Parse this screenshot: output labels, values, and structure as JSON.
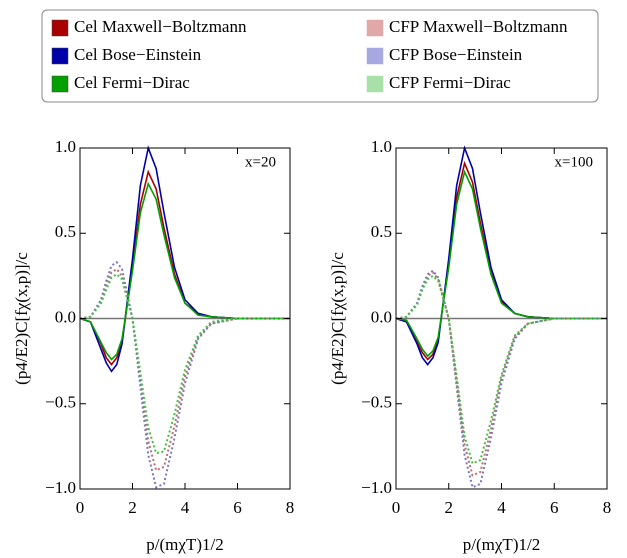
{
  "chart_data": [
    {
      "type": "line",
      "annotation": "x=20",
      "xlabel": "p/(mχT)1/2",
      "ylabel": "(p4/E2)C[fχ(x,p)]/c",
      "xlim": [
        0,
        8
      ],
      "ylim": [
        -1,
        1
      ],
      "xticks": [
        0,
        2,
        4,
        6,
        8
      ],
      "yticks": [
        {
          "value": -1,
          "label": "−1.0"
        },
        {
          "value": -0.5,
          "label": "−0.5"
        },
        {
          "value": 0,
          "label": "0.0"
        },
        {
          "value": 0.5,
          "label": "0.5"
        },
        {
          "value": 1,
          "label": "1.0"
        }
      ],
      "x": [
        0,
        0.4,
        0.8,
        1.0,
        1.2,
        1.4,
        1.6,
        2.0,
        2.3,
        2.6,
        2.9,
        3.2,
        3.6,
        4.0,
        4.5,
        5,
        6,
        7,
        8
      ],
      "series": [
        {
          "name": "Cel Maxwell−Boltzmann",
          "color": "#a80000",
          "dotted": false,
          "values": [
            0,
            -0.02,
            -0.15,
            -0.23,
            -0.27,
            -0.23,
            -0.14,
            0.3,
            0.67,
            0.86,
            0.76,
            0.53,
            0.26,
            0.09,
            0.03,
            0.01,
            0,
            0,
            0
          ]
        },
        {
          "name": "Cel Bose−Einstein",
          "color": "#0000a8",
          "dotted": false,
          "values": [
            0,
            -0.02,
            -0.18,
            -0.26,
            -0.31,
            -0.27,
            -0.15,
            0.35,
            0.78,
            1.0,
            0.88,
            0.62,
            0.3,
            0.11,
            0.03,
            0.01,
            0,
            0,
            0
          ]
        },
        {
          "name": "Cel Fermi−Dirac",
          "color": "#00a000",
          "dotted": false,
          "values": [
            0,
            -0.02,
            -0.14,
            -0.2,
            -0.24,
            -0.21,
            -0.12,
            0.28,
            0.62,
            0.79,
            0.7,
            0.49,
            0.24,
            0.09,
            0.02,
            0.01,
            0,
            0,
            0
          ]
        },
        {
          "name": "CFP Maxwell−Boltzmann",
          "color": "#e0a8a8",
          "dotted": true,
          "values": [
            0,
            0.01,
            0.1,
            0.19,
            0.27,
            0.29,
            0.25,
            0,
            -0.36,
            -0.72,
            -0.89,
            -0.87,
            -0.63,
            -0.34,
            -0.11,
            -0.03,
            0,
            0,
            0
          ]
        },
        {
          "name": "CFP Bose−Einstein",
          "color": "#a8a8e0",
          "dotted": true,
          "values": [
            0,
            0.01,
            0.11,
            0.22,
            0.31,
            0.33,
            0.29,
            0,
            -0.4,
            -0.8,
            -0.99,
            -0.97,
            -0.7,
            -0.38,
            -0.12,
            -0.03,
            0,
            0,
            0
          ]
        },
        {
          "name": "CFP Fermi−Dirac",
          "color": "#a8e0a8",
          "dotted": true,
          "values": [
            0,
            0.01,
            0.09,
            0.17,
            0.24,
            0.26,
            0.23,
            0,
            -0.32,
            -0.64,
            -0.79,
            -0.78,
            -0.56,
            -0.3,
            -0.1,
            -0.02,
            0,
            0,
            0
          ]
        }
      ]
    },
    {
      "type": "line",
      "annotation": "x=100",
      "xlabel": "p/(mχT)1/2",
      "ylabel": "(p4/E2)C[fχ(x,p)]/c",
      "xlim": [
        0,
        8
      ],
      "ylim": [
        -1,
        1
      ],
      "xticks": [
        0,
        2,
        4,
        6,
        8
      ],
      "yticks": [
        {
          "value": -1,
          "label": "−1.0"
        },
        {
          "value": -0.5,
          "label": "−0.5"
        },
        {
          "value": 0,
          "label": "0.0"
        },
        {
          "value": 0.5,
          "label": "0.5"
        },
        {
          "value": 1,
          "label": "1.0"
        }
      ],
      "x": [
        0,
        0.4,
        0.8,
        1.0,
        1.2,
        1.4,
        1.6,
        2.0,
        2.3,
        2.6,
        2.9,
        3.2,
        3.6,
        4.0,
        4.5,
        5,
        6,
        7,
        8
      ],
      "series": [
        {
          "color": "#a80000",
          "dotted": false,
          "values": [
            0,
            -0.02,
            -0.14,
            -0.2,
            -0.24,
            -0.21,
            -0.12,
            0.32,
            0.71,
            0.91,
            0.8,
            0.56,
            0.27,
            0.1,
            0.03,
            0.01,
            0,
            0,
            0
          ]
        },
        {
          "color": "#0000a8",
          "dotted": false,
          "values": [
            0,
            -0.02,
            -0.15,
            -0.23,
            -0.27,
            -0.23,
            -0.14,
            0.35,
            0.78,
            1.0,
            0.88,
            0.62,
            0.3,
            0.11,
            0.03,
            0.01,
            0,
            0,
            0
          ]
        },
        {
          "color": "#00a000",
          "dotted": false,
          "values": [
            0,
            -0.01,
            -0.12,
            -0.18,
            -0.22,
            -0.19,
            -0.11,
            0.3,
            0.67,
            0.86,
            0.76,
            0.53,
            0.26,
            0.09,
            0.03,
            0.01,
            0,
            0,
            0
          ]
        },
        {
          "color": "#e0a8a8",
          "dotted": true,
          "values": [
            0,
            0.01,
            0.09,
            0.18,
            0.25,
            0.27,
            0.23,
            0,
            -0.37,
            -0.74,
            -0.92,
            -0.9,
            -0.65,
            -0.35,
            -0.11,
            -0.03,
            0,
            0,
            0
          ]
        },
        {
          "color": "#a8a8e0",
          "dotted": true,
          "values": [
            0,
            0.01,
            0.09,
            0.19,
            0.26,
            0.28,
            0.24,
            0,
            -0.4,
            -0.8,
            -0.99,
            -0.97,
            -0.7,
            -0.38,
            -0.12,
            -0.03,
            0,
            0,
            0
          ]
        },
        {
          "color": "#a8e0a8",
          "dotted": true,
          "values": [
            0,
            0.01,
            0.08,
            0.17,
            0.23,
            0.25,
            0.22,
            0,
            -0.34,
            -0.69,
            -0.85,
            -0.83,
            -0.6,
            -0.33,
            -0.1,
            -0.03,
            0,
            0,
            0
          ]
        }
      ]
    }
  ]
}
